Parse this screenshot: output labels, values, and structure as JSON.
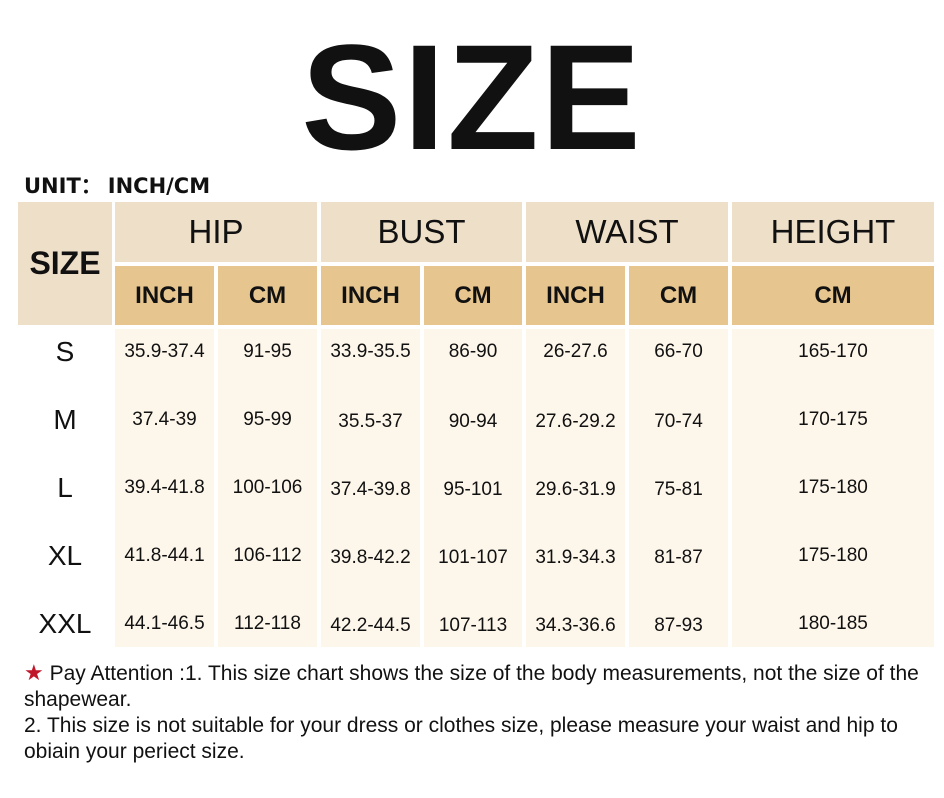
{
  "title": "SIZE",
  "unit": {
    "label": "UNIT：",
    "value": "INCH/CM"
  },
  "table": {
    "size_header": "SIZE",
    "groups": [
      "HIP",
      "BUST",
      "WAIST",
      "HEIGHT"
    ],
    "subheaders": [
      "INCH",
      "CM",
      "INCH",
      "CM",
      "INCH",
      "CM",
      "CM"
    ],
    "rows": [
      {
        "size": "S",
        "values": [
          "35.9-37.4",
          "91-95",
          "33.9-35.5",
          "86-90",
          "26-27.6",
          "66-70",
          "165-170"
        ]
      },
      {
        "size": "M",
        "values": [
          "37.4-39",
          "95-99",
          "35.5-37",
          "90-94",
          "27.6-29.2",
          "70-74",
          "170-175"
        ]
      },
      {
        "size": "L",
        "values": [
          "39.4-41.8",
          "100-106",
          "37.4-39.8",
          "95-101",
          "29.6-31.9",
          "75-81",
          "175-180"
        ]
      },
      {
        "size": "XL",
        "values": [
          "41.8-44.1",
          "106-112",
          "39.8-42.2",
          "101-107",
          "31.9-34.3",
          "81-87",
          "175-180"
        ]
      },
      {
        "size": "XXL",
        "values": [
          "44.1-46.5",
          "112-118",
          "42.2-44.5",
          "107-113",
          "34.3-36.6",
          "87-93",
          "180-185"
        ]
      }
    ]
  },
  "note": {
    "star_color": "#c0182a",
    "line1": "Pay Attention :1. This size chart shows the size of the body measurements, not the size of the shapewear.",
    "line2": "2. This size is not suitable for your dress or clothes size, please measure your waist and hip to obiain your periect size."
  },
  "colors": {
    "header": "#eedfc8",
    "subheader": "#e6c58f",
    "body": "#fdf6ea"
  }
}
